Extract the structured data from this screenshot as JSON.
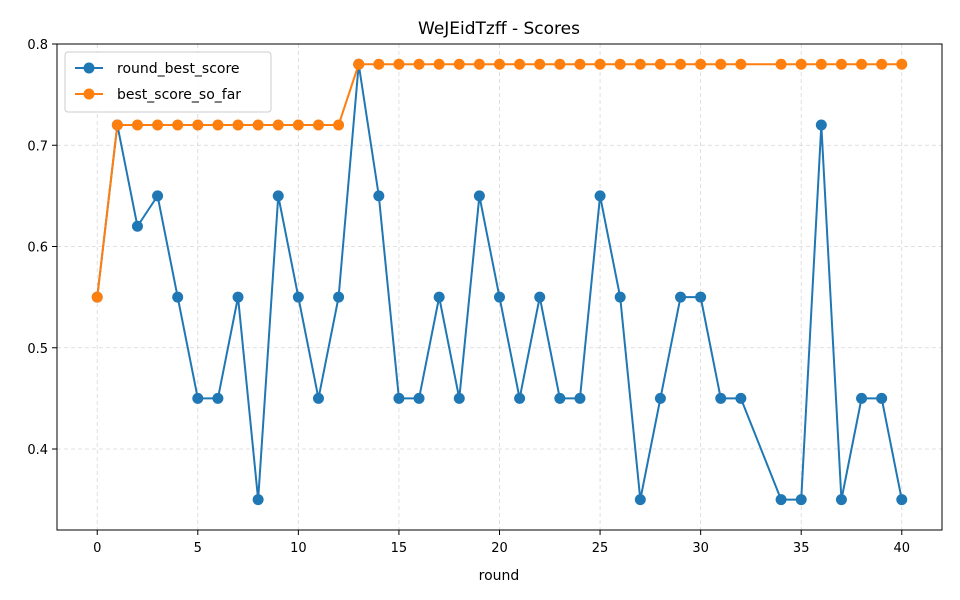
{
  "chart_data": {
    "type": "line",
    "title": "WeJEidTzff - Scores",
    "xlabel": "round",
    "ylabel": "",
    "xlim": [
      -2,
      42
    ],
    "ylim": [
      0.32,
      0.8
    ],
    "xticks": [
      0,
      5,
      10,
      15,
      20,
      25,
      30,
      35,
      40
    ],
    "yticks": [
      0.4,
      0.5,
      0.6,
      0.7,
      0.8
    ],
    "grid": true,
    "legend_position": "top-left",
    "series": [
      {
        "name": "round_best_score",
        "color": "#1f77b4",
        "x": [
          0,
          1,
          2,
          3,
          4,
          5,
          6,
          7,
          8,
          9,
          10,
          11,
          12,
          13,
          14,
          15,
          16,
          17,
          18,
          19,
          20,
          21,
          22,
          23,
          24,
          25,
          26,
          27,
          28,
          29,
          30,
          31,
          32,
          34,
          35,
          36,
          37,
          38,
          39,
          40
        ],
        "y": [
          0.55,
          0.72,
          0.62,
          0.65,
          0.55,
          0.45,
          0.45,
          0.55,
          0.35,
          0.65,
          0.55,
          0.45,
          0.55,
          0.78,
          0.65,
          0.45,
          0.45,
          0.55,
          0.45,
          0.65,
          0.55,
          0.45,
          0.55,
          0.45,
          0.45,
          0.65,
          0.55,
          0.35,
          0.45,
          0.55,
          0.55,
          0.45,
          0.45,
          0.35,
          0.35,
          0.72,
          0.35,
          0.45,
          0.45,
          0.35
        ]
      },
      {
        "name": "best_score_so_far",
        "color": "#ff7f0e",
        "x": [
          0,
          1,
          2,
          3,
          4,
          5,
          6,
          7,
          8,
          9,
          10,
          11,
          12,
          13,
          14,
          15,
          16,
          17,
          18,
          19,
          20,
          21,
          22,
          23,
          24,
          25,
          26,
          27,
          28,
          29,
          30,
          31,
          32,
          34,
          35,
          36,
          37,
          38,
          39,
          40
        ],
        "y": [
          0.55,
          0.72,
          0.72,
          0.72,
          0.72,
          0.72,
          0.72,
          0.72,
          0.72,
          0.72,
          0.72,
          0.72,
          0.72,
          0.78,
          0.78,
          0.78,
          0.78,
          0.78,
          0.78,
          0.78,
          0.78,
          0.78,
          0.78,
          0.78,
          0.78,
          0.78,
          0.78,
          0.78,
          0.78,
          0.78,
          0.78,
          0.78,
          0.78,
          0.78,
          0.78,
          0.78,
          0.78,
          0.78,
          0.78,
          0.78
        ]
      }
    ]
  }
}
